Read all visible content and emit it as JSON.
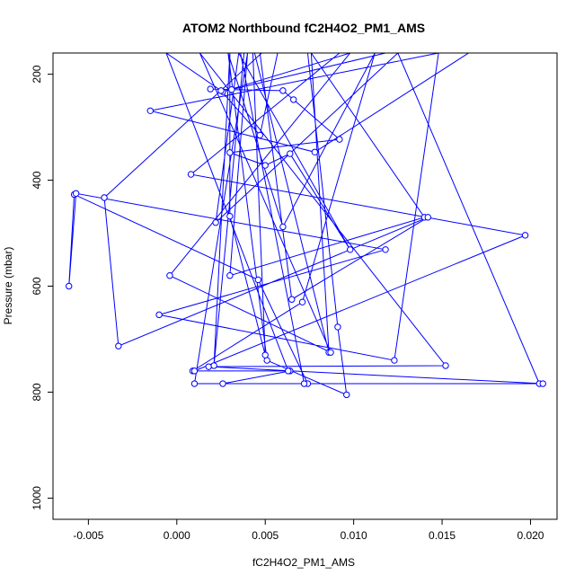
{
  "chart_data": {
    "type": "line",
    "title": "ATOM2 Northbound fC2H4O2_PM1_AMS",
    "xlabel": "fC2H4O2_PM1_AMS",
    "ylabel": "Pressure (mbar)",
    "xlim": [
      -0.007,
      0.0215
    ],
    "ylim": [
      1040,
      160
    ],
    "y_reversed": true,
    "grid": false,
    "x_ticks": [
      -0.005,
      0.0,
      0.005,
      0.01,
      0.015,
      0.02
    ],
    "x_tick_labels": [
      "-0.005",
      "0.000",
      "0.005",
      "0.010",
      "0.015",
      "0.020"
    ],
    "y_ticks": [
      200,
      400,
      600,
      800,
      1000
    ],
    "y_tick_labels": [
      "200",
      "400",
      "600",
      "800",
      "1000"
    ],
    "series_color": "#0000ff",
    "series": [
      {
        "x": [
          0.0019,
          0.0031,
          0.006,
          0.0066,
          0.0092,
          0.003,
          0.005,
          0.0064,
          0.0098,
          0.0035,
          0.0022,
          0.0125,
          0.0205,
          0.0074,
          0.0046,
          -0.0058,
          -0.0061,
          -0.0057,
          0.0118,
          -0.001,
          0.0123,
          0.0148,
          -0.0015,
          0.0078,
          0.0165,
          0.0036,
          0.0072,
          0.001,
          0.004,
          0.003,
          0.014,
          0.0076,
          0.0086,
          0.0044,
          0.0118,
          0.0026,
          0.0098,
          -0.0004,
          0.0087,
          0.0013,
          0.0152,
          0.0018,
          0.0207,
          0.0026,
          0.0064,
          0.0009,
          0.0071,
          0.0112,
          0.006,
          0.0029,
          0.0051,
          0.0096,
          0.0091,
          0.0074,
          0.0057,
          0.0047,
          0.0025,
          -0.0006,
          0.0063,
          0.001,
          0.0197,
          0.0008,
          0.0092,
          0.004,
          0.0043,
          0.005,
          0.003,
          0.003,
          0.0021,
          0.0038,
          0.0024,
          0.0048,
          -0.0041,
          -0.0033,
          0.0142,
          0.0065,
          0.0047,
          0.007,
          0.005,
          0.0029,
          0.0,
          0.014,
          0.0023,
          0.0003,
          0.0055,
          0.0036,
          0.0012,
          0.0033,
          0.0022,
          0.0038,
          0.0027
        ],
        "y": [
          228,
          229,
          231,
          248,
          323,
          348,
          372,
          350,
          531,
          160,
          480,
          160,
          784,
          784,
          588,
          427,
          600,
          425,
          531,
          654,
          740,
          160,
          269,
          347,
          160,
          160,
          784,
          784,
          160,
          580,
          470,
          160,
          725,
          160,
          160,
          233,
          160,
          580,
          725,
          160,
          750,
          752,
          784,
          784,
          760,
          760,
          630,
          160,
          488,
          160,
          740,
          805,
          677,
          160,
          160,
          315,
          231,
          160,
          760,
          760,
          504,
          389,
          160,
          160,
          160,
          730,
          468,
          160,
          750,
          160,
          160,
          160,
          433,
          713,
          470,
          625,
          160,
          160,
          160,
          160,
          160,
          160,
          160,
          160,
          160,
          160,
          160,
          160,
          160,
          160,
          160
        ]
      }
    ]
  }
}
